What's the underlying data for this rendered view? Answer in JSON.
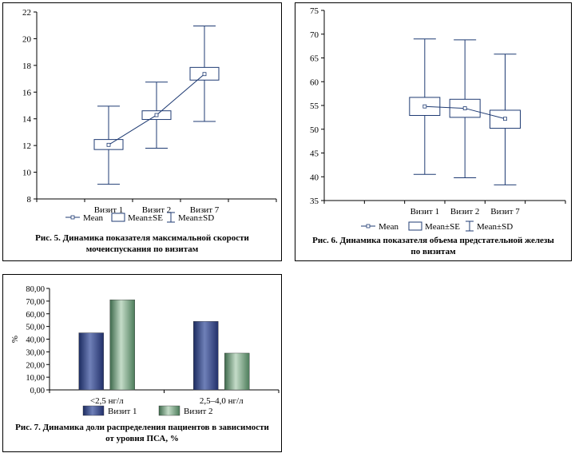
{
  "colors": {
    "line": "#1f3b73",
    "visit1": "#2b3d78",
    "visit2": "#6d9a78"
  },
  "chart_data": [
    {
      "type": "boxplot",
      "id": "fig5",
      "categories": [
        "Визит 1",
        "Визит 2",
        "Визит 7"
      ],
      "mean": [
        12.05,
        14.28,
        17.35
      ],
      "se": [
        [
          11.7,
          12.45
        ],
        [
          13.95,
          14.6
        ],
        [
          16.9,
          17.85
        ]
      ],
      "sd": [
        [
          9.1,
          14.95
        ],
        [
          11.8,
          16.75
        ],
        [
          13.8,
          20.95
        ]
      ],
      "ylim": [
        8,
        22
      ],
      "yticks": [
        "8",
        "10",
        "12",
        "14",
        "16",
        "18",
        "20",
        "22"
      ],
      "legend": [
        "Mean",
        "Mean±SE",
        "Mean±SD"
      ],
      "caption_line1": "Рис. 5. Динамика показателя максимальной скорости",
      "caption_line2": "мочеиспускания по визитам"
    },
    {
      "type": "boxplot",
      "id": "fig6",
      "categories": [
        "Визит 1",
        "Визит 2",
        "Визит 7"
      ],
      "mean": [
        54.8,
        54.4,
        52.2
      ],
      "se": [
        [
          52.9,
          56.7
        ],
        [
          52.5,
          56.3
        ],
        [
          50.2,
          54.0
        ]
      ],
      "sd": [
        [
          40.5,
          69.0
        ],
        [
          39.8,
          68.8
        ],
        [
          38.3,
          65.8
        ]
      ],
      "ylim": [
        35,
        75
      ],
      "yticks": [
        "35",
        "40",
        "45",
        "50",
        "55",
        "60",
        "65",
        "70",
        "75"
      ],
      "legend": [
        "Mean",
        "Mean±SE",
        "Mean±SD"
      ],
      "caption_line1": "Рис. 6. Динамика показателя объема предстательной железы",
      "caption_line2": "по визитам"
    },
    {
      "type": "bar",
      "id": "fig7",
      "categories": [
        "<2,5 нг/л",
        "2,5–4,0 нг/л"
      ],
      "series": [
        {
          "name": "Визит 1",
          "values": [
            45,
            54
          ]
        },
        {
          "name": "Визит 2",
          "values": [
            71,
            29
          ]
        }
      ],
      "ylabel": "%",
      "ylim": [
        0,
        80
      ],
      "yticks": [
        "0,00",
        "10,00",
        "20,00",
        "30,00",
        "40,00",
        "50,00",
        "60,00",
        "70,00",
        "80,00"
      ],
      "caption_line1": "Рис. 7. Динамика доли распределения пациентов в зависимости",
      "caption_line2": "от уровня ПСА, %"
    }
  ]
}
